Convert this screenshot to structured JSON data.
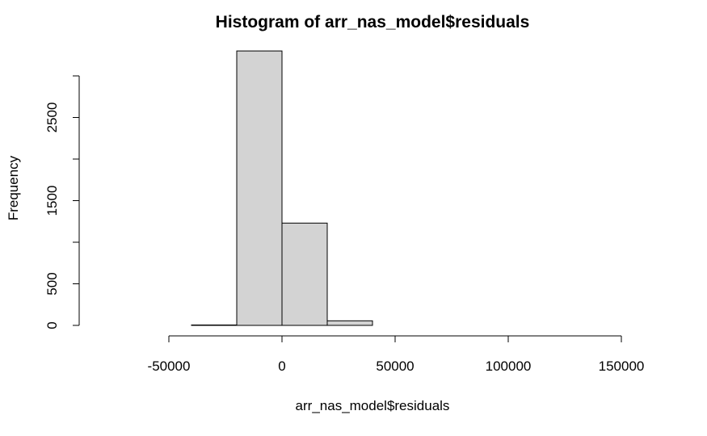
{
  "chart_data": {
    "type": "bar",
    "title": "Histogram of arr_nas_model$residuals",
    "xlabel": "arr_nas_model$residuals",
    "ylabel": "Frequency",
    "bins": [
      {
        "start": -80000,
        "end": -60000,
        "count": 0
      },
      {
        "start": -60000,
        "end": -40000,
        "count": 0
      },
      {
        "start": -40000,
        "end": -20000,
        "count": 5
      },
      {
        "start": -20000,
        "end": 0,
        "count": 3300
      },
      {
        "start": 0,
        "end": 20000,
        "count": 1230
      },
      {
        "start": 20000,
        "end": 40000,
        "count": 55
      },
      {
        "start": 40000,
        "end": 60000,
        "count": 0
      },
      {
        "start": 60000,
        "end": 80000,
        "count": 0
      },
      {
        "start": 80000,
        "end": 100000,
        "count": 0
      },
      {
        "start": 100000,
        "end": 120000,
        "count": 0
      },
      {
        "start": 120000,
        "end": 140000,
        "count": 0
      },
      {
        "start": 140000,
        "end": 160000,
        "count": 0
      }
    ],
    "x_ticks": [
      {
        "value": -50000,
        "label": "-50000"
      },
      {
        "value": 0,
        "label": "0"
      },
      {
        "value": 50000,
        "label": "50000"
      },
      {
        "value": 100000,
        "label": "100000"
      },
      {
        "value": 150000,
        "label": "150000"
      }
    ],
    "y_ticks": [
      {
        "value": 0,
        "label": "0"
      },
      {
        "value": 500,
        "label": "500"
      },
      {
        "value": 1000,
        "label": ""
      },
      {
        "value": 1500,
        "label": "1500"
      },
      {
        "value": 2000,
        "label": ""
      },
      {
        "value": 2500,
        "label": "2500"
      },
      {
        "value": 3000,
        "label": ""
      }
    ],
    "xlim": [
      -80000,
      160000
    ],
    "ylim": [
      0,
      3300
    ],
    "grid": false,
    "bar_color": "#d3d3d3"
  }
}
